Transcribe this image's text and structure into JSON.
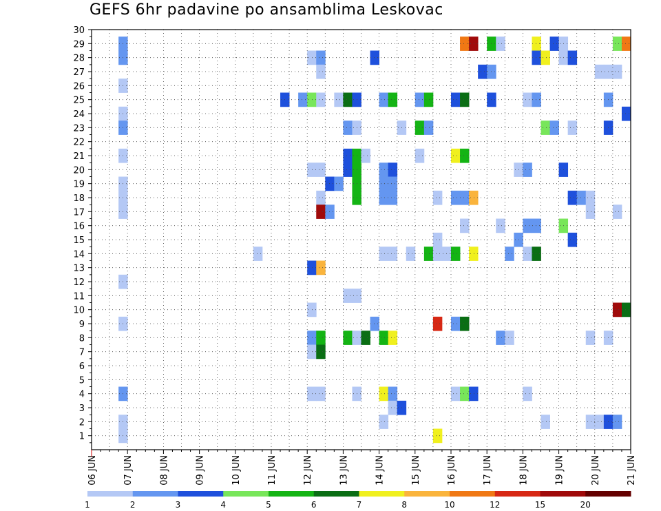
{
  "chart_data": {
    "type": "heatmap",
    "title": "GEFS 6hr padavine po ansamblima Leskovac",
    "xlabel": "",
    "ylabel": "",
    "x_ticks": [
      "06 JUN",
      "07 JUN",
      "08 JUN",
      "09 JUN",
      "10 JUN",
      "11 JUN",
      "12 JUN",
      "13 JUN",
      "14 JUN",
      "15 JUN",
      "16 JUN",
      "17 JUN",
      "18 JUN",
      "19 JUN",
      "20 JUN",
      "21 JUN"
    ],
    "x_unit": "6h step (4 steps per day, starting 06 JUN 00Z)",
    "y_ticks": [
      "1",
      "2",
      "3",
      "4",
      "5",
      "6",
      "7",
      "8",
      "9",
      "10",
      "11",
      "12",
      "13",
      "14",
      "15",
      "16",
      "17",
      "18",
      "19",
      "20",
      "21",
      "22",
      "23",
      "24",
      "25",
      "26",
      "27",
      "28",
      "29",
      "30"
    ],
    "ylim": [
      0,
      30
    ],
    "xlim": [
      0,
      60
    ],
    "grid": true,
    "legend_position": "bottom",
    "colorbar": {
      "labels": [
        "1",
        "2",
        "3",
        "4",
        "5",
        "6",
        "7",
        "8",
        "10",
        "12",
        "15",
        "20"
      ],
      "colors": [
        "#b4c8f5",
        "#6496f0",
        "#1e50dc",
        "#78e65a",
        "#14b414",
        "#0a6e14",
        "#f0f01e",
        "#fab43c",
        "#f07814",
        "#d72814",
        "#a00a0a",
        "#640000"
      ]
    },
    "cells_format": "[step, member, class] where class 1-12 indexes colorbar.colors",
    "cells": [
      [
        4,
        29,
        2
      ],
      [
        4,
        28,
        2
      ],
      [
        4,
        26,
        1
      ],
      [
        4,
        24,
        1
      ],
      [
        4,
        23,
        2
      ],
      [
        4,
        21,
        1
      ],
      [
        4,
        19,
        1
      ],
      [
        4,
        18,
        1
      ],
      [
        4,
        17,
        1
      ],
      [
        4,
        12,
        1
      ],
      [
        4,
        9,
        1
      ],
      [
        4,
        4,
        2
      ],
      [
        4,
        2,
        1
      ],
      [
        4,
        1,
        1
      ],
      [
        19,
        14,
        1
      ],
      [
        22,
        25,
        3
      ],
      [
        24,
        25,
        2
      ],
      [
        25,
        28,
        1
      ],
      [
        25,
        25,
        4
      ],
      [
        25,
        20,
        1
      ],
      [
        25,
        13,
        3
      ],
      [
        25,
        10,
        1
      ],
      [
        25,
        8,
        2
      ],
      [
        25,
        7,
        1
      ],
      [
        25,
        4,
        1
      ],
      [
        26,
        28,
        2
      ],
      [
        26,
        27,
        1
      ],
      [
        26,
        25,
        1
      ],
      [
        26,
        20,
        1
      ],
      [
        26,
        18,
        1
      ],
      [
        26,
        17,
        11
      ],
      [
        26,
        13,
        8
      ],
      [
        26,
        8,
        5
      ],
      [
        26,
        7,
        6
      ],
      [
        26,
        4,
        1
      ],
      [
        27,
        19,
        3
      ],
      [
        27,
        17,
        2
      ],
      [
        28,
        25,
        1
      ],
      [
        28,
        19,
        2
      ],
      [
        29,
        25,
        6
      ],
      [
        29,
        23,
        2
      ],
      [
        29,
        21,
        3
      ],
      [
        29,
        20,
        3
      ],
      [
        29,
        11,
        1
      ],
      [
        29,
        8,
        5
      ],
      [
        30,
        25,
        3
      ],
      [
        30,
        23,
        1
      ],
      [
        30,
        21,
        5
      ],
      [
        30,
        20,
        5
      ],
      [
        30,
        19,
        5
      ],
      [
        30,
        18,
        5
      ],
      [
        30,
        11,
        1
      ],
      [
        30,
        8,
        1
      ],
      [
        30,
        4,
        1
      ],
      [
        31,
        21,
        1
      ],
      [
        31,
        8,
        6
      ],
      [
        32,
        28,
        3
      ],
      [
        32,
        9,
        2
      ],
      [
        33,
        25,
        2
      ],
      [
        33,
        20,
        2
      ],
      [
        33,
        19,
        2
      ],
      [
        33,
        18,
        2
      ],
      [
        33,
        14,
        1
      ],
      [
        33,
        8,
        5
      ],
      [
        33,
        4,
        7
      ],
      [
        33,
        2,
        1
      ],
      [
        34,
        25,
        5
      ],
      [
        34,
        20,
        3
      ],
      [
        34,
        19,
        2
      ],
      [
        34,
        18,
        2
      ],
      [
        34,
        14,
        1
      ],
      [
        34,
        8,
        7
      ],
      [
        34,
        4,
        2
      ],
      [
        34,
        3,
        1
      ],
      [
        35,
        23,
        1
      ],
      [
        35,
        3,
        3
      ],
      [
        36,
        14,
        1
      ],
      [
        37,
        25,
        2
      ],
      [
        37,
        23,
        5
      ],
      [
        37,
        21,
        1
      ],
      [
        38,
        25,
        5
      ],
      [
        38,
        23,
        2
      ],
      [
        38,
        14,
        5
      ],
      [
        39,
        18,
        1
      ],
      [
        39,
        15,
        1
      ],
      [
        39,
        14,
        1
      ],
      [
        39,
        9,
        10
      ],
      [
        39,
        1,
        7
      ],
      [
        40,
        14,
        1
      ],
      [
        41,
        25,
        3
      ],
      [
        41,
        21,
        7
      ],
      [
        41,
        18,
        2
      ],
      [
        41,
        14,
        5
      ],
      [
        41,
        9,
        2
      ],
      [
        41,
        4,
        1
      ],
      [
        42,
        29,
        9
      ],
      [
        42,
        25,
        6
      ],
      [
        42,
        21,
        5
      ],
      [
        42,
        18,
        2
      ],
      [
        42,
        16,
        1
      ],
      [
        42,
        9,
        6
      ],
      [
        42,
        4,
        4
      ],
      [
        43,
        29,
        11
      ],
      [
        43,
        18,
        8
      ],
      [
        43,
        14,
        7
      ],
      [
        43,
        4,
        3
      ],
      [
        44,
        27,
        3
      ],
      [
        45,
        29,
        5
      ],
      [
        45,
        27,
        2
      ],
      [
        45,
        25,
        3
      ],
      [
        46,
        29,
        1
      ],
      [
        46,
        16,
        1
      ],
      [
        46,
        8,
        2
      ],
      [
        47,
        14,
        2
      ],
      [
        47,
        8,
        1
      ],
      [
        48,
        20,
        1
      ],
      [
        48,
        15,
        2
      ],
      [
        49,
        25,
        1
      ],
      [
        49,
        20,
        2
      ],
      [
        49,
        16,
        2
      ],
      [
        49,
        14,
        1
      ],
      [
        49,
        4,
        1
      ],
      [
        50,
        29,
        7
      ],
      [
        50,
        28,
        3
      ],
      [
        50,
        25,
        2
      ],
      [
        50,
        16,
        2
      ],
      [
        50,
        14,
        6
      ],
      [
        51,
        28,
        7
      ],
      [
        51,
        23,
        4
      ],
      [
        51,
        2,
        1
      ],
      [
        52,
        29,
        3
      ],
      [
        52,
        23,
        2
      ],
      [
        53,
        29,
        1
      ],
      [
        53,
        28,
        1
      ],
      [
        53,
        20,
        3
      ],
      [
        53,
        16,
        4
      ],
      [
        54,
        28,
        3
      ],
      [
        54,
        23,
        1
      ],
      [
        54,
        18,
        3
      ],
      [
        54,
        15,
        3
      ],
      [
        55,
        18,
        2
      ],
      [
        56,
        18,
        1
      ],
      [
        56,
        17,
        1
      ],
      [
        56,
        8,
        1
      ],
      [
        56,
        2,
        1
      ],
      [
        57,
        27,
        1
      ],
      [
        57,
        2,
        1
      ],
      [
        58,
        27,
        1
      ],
      [
        58,
        25,
        2
      ],
      [
        58,
        23,
        3
      ],
      [
        58,
        8,
        1
      ],
      [
        58,
        2,
        3
      ],
      [
        59,
        29,
        4
      ],
      [
        59,
        27,
        1
      ],
      [
        59,
        17,
        1
      ],
      [
        59,
        10,
        11
      ],
      [
        59,
        2,
        2
      ],
      [
        60,
        29,
        9
      ],
      [
        60,
        24,
        3
      ],
      [
        60,
        10,
        6
      ]
    ]
  }
}
